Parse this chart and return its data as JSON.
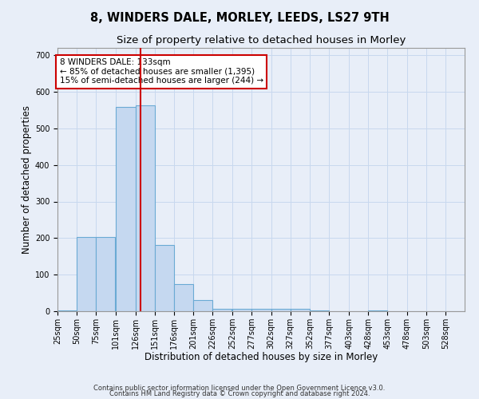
{
  "title": "8, WINDERS DALE, MORLEY, LEEDS, LS27 9TH",
  "subtitle": "Size of property relative to detached houses in Morley",
  "xlabel": "Distribution of detached houses by size in Morley",
  "ylabel": "Number of detached properties",
  "annotation_lines": [
    "8 WINDERS DALE: 133sqm",
    "← 85% of detached houses are smaller (1,395)",
    "15% of semi-detached houses are larger (244) →"
  ],
  "bar_color": "#c5d8f0",
  "bar_edge_color": "#6aaad4",
  "redline_color": "#cc0000",
  "redline_x": 133,
  "background_color": "#e8eef8",
  "grid_color": "#c8d8ee",
  "categories": [
    25,
    50,
    75,
    101,
    126,
    151,
    176,
    201,
    226,
    252,
    277,
    302,
    327,
    352,
    377,
    403,
    428,
    453,
    478,
    503,
    528
  ],
  "values": [
    2,
    204,
    204,
    558,
    563,
    182,
    75,
    30,
    7,
    7,
    7,
    7,
    7,
    2,
    0,
    0,
    2,
    0,
    0,
    0,
    0
  ],
  "ylim": [
    0,
    720
  ],
  "yticks": [
    0,
    100,
    200,
    300,
    400,
    500,
    600,
    700
  ],
  "footer_line1": "Contains HM Land Registry data © Crown copyright and database right 2024.",
  "footer_line2": "Contains public sector information licensed under the Open Government Licence v3.0.",
  "title_fontsize": 10.5,
  "subtitle_fontsize": 9.5,
  "axis_label_fontsize": 8.5,
  "tick_fontsize": 7,
  "footer_fontsize": 6,
  "ann_fontsize": 7.5
}
